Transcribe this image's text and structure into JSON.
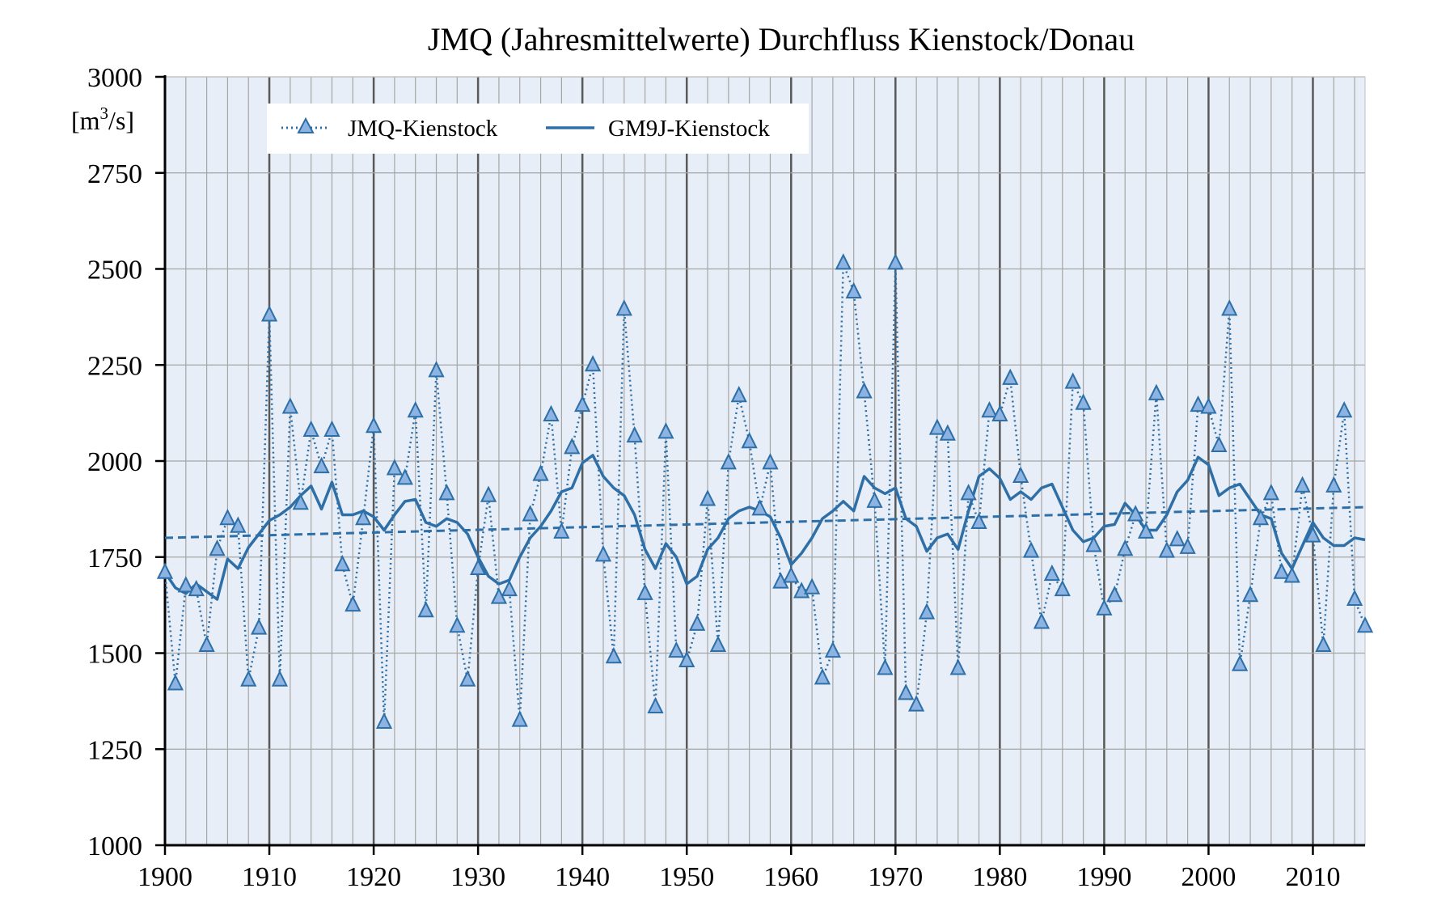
{
  "chart_data": {
    "type": "line",
    "title": "JMQ (Jahresmittelwerte)  Durchfluss Kienstock/Donau",
    "ylabel_prefix": "[m",
    "ylabel_sup": "3",
    "ylabel_suffix": "/s]",
    "xlim": [
      1900,
      2015
    ],
    "ylim": [
      1000,
      3000
    ],
    "x_ticks": [
      1900,
      1910,
      1920,
      1930,
      1940,
      1950,
      1960,
      1970,
      1980,
      1990,
      2000,
      2010
    ],
    "y_ticks": [
      1000,
      1250,
      1500,
      1750,
      2000,
      2250,
      2500,
      2750,
      3000
    ],
    "grid": "vertical lines every 2 years, major every 10 years; horizontal lines every 250",
    "legend_position": "top-left",
    "colors": {
      "series": "#2e6fa7",
      "marker_fill": "#8db3e2",
      "plot_background": "#e7eef7",
      "major_grid": "#595959",
      "minor_grid": "#a6a6a6"
    },
    "series": [
      {
        "name": "JMQ-Kienstock",
        "style": "dotted line with triangle markers",
        "x": [
          1900,
          1901,
          1902,
          1903,
          1904,
          1905,
          1906,
          1907,
          1908,
          1909,
          1910,
          1911,
          1912,
          1913,
          1914,
          1915,
          1916,
          1917,
          1918,
          1919,
          1920,
          1921,
          1922,
          1923,
          1924,
          1925,
          1926,
          1927,
          1928,
          1929,
          1930,
          1931,
          1932,
          1933,
          1934,
          1935,
          1936,
          1937,
          1938,
          1939,
          1940,
          1941,
          1942,
          1943,
          1944,
          1945,
          1946,
          1947,
          1948,
          1949,
          1950,
          1951,
          1952,
          1953,
          1954,
          1955,
          1956,
          1957,
          1958,
          1959,
          1960,
          1961,
          1962,
          1963,
          1964,
          1965,
          1966,
          1967,
          1968,
          1969,
          1970,
          1971,
          1972,
          1973,
          1974,
          1975,
          1976,
          1977,
          1978,
          1979,
          1980,
          1981,
          1982,
          1983,
          1984,
          1985,
          1986,
          1987,
          1988,
          1989,
          1990,
          1991,
          1992,
          1993,
          1994,
          1995,
          1996,
          1997,
          1998,
          1999,
          2000,
          2001,
          2002,
          2003,
          2004,
          2005,
          2006,
          2007,
          2008,
          2009,
          2010,
          2011,
          2012,
          2013,
          2014,
          2015
        ],
        "y": [
          1710,
          1420,
          1675,
          1665,
          1520,
          1770,
          1850,
          1830,
          1430,
          1565,
          2380,
          1430,
          2140,
          1890,
          2080,
          1985,
          2080,
          1730,
          1625,
          1850,
          2090,
          1320,
          1980,
          1955,
          2130,
          1610,
          2235,
          1915,
          1570,
          1430,
          1720,
          1910,
          1645,
          1665,
          1325,
          1860,
          1965,
          2120,
          1815,
          2035,
          2145,
          2250,
          1755,
          1490,
          2395,
          2065,
          1655,
          1360,
          2075,
          1505,
          1480,
          1575,
          1900,
          1520,
          1995,
          2170,
          2050,
          1875,
          1995,
          1685,
          1700,
          1660,
          1670,
          1435,
          1505,
          2515,
          2440,
          2180,
          1895,
          1460,
          2515,
          1395,
          1365,
          1605,
          2085,
          2070,
          1460,
          1915,
          1840,
          2130,
          2120,
          2215,
          1960,
          1765,
          1580,
          1705,
          1665,
          2205,
          2150,
          1780,
          1615,
          1650,
          1770,
          1860,
          1815,
          2175,
          1765,
          1795,
          1775,
          2145,
          2140,
          2040,
          2395,
          1470,
          1650,
          1850,
          1915,
          1710,
          1700,
          1935,
          1805,
          1520,
          1935,
          2130,
          1640,
          1570
        ]
      },
      {
        "name": "GM9J-Kienstock",
        "style": "solid line (gleitendes Mittel)",
        "x": [
          1900,
          1901,
          1902,
          1903,
          1904,
          1905,
          1906,
          1907,
          1908,
          1909,
          1910,
          1911,
          1912,
          1913,
          1914,
          1915,
          1916,
          1917,
          1918,
          1919,
          1920,
          1921,
          1922,
          1923,
          1924,
          1925,
          1926,
          1927,
          1928,
          1929,
          1930,
          1931,
          1932,
          1933,
          1934,
          1935,
          1936,
          1937,
          1938,
          1939,
          1940,
          1941,
          1942,
          1943,
          1944,
          1945,
          1946,
          1947,
          1948,
          1949,
          1950,
          1951,
          1952,
          1953,
          1954,
          1955,
          1956,
          1957,
          1958,
          1959,
          1960,
          1961,
          1962,
          1963,
          1964,
          1965,
          1966,
          1967,
          1968,
          1969,
          1970,
          1971,
          1972,
          1973,
          1974,
          1975,
          1976,
          1977,
          1978,
          1979,
          1980,
          1981,
          1982,
          1983,
          1984,
          1985,
          1986,
          1987,
          1988,
          1989,
          1990,
          1991,
          1992,
          1993,
          1994,
          1995,
          1996,
          1997,
          1998,
          1999,
          2000,
          2001,
          2002,
          2003,
          2004,
          2005,
          2006,
          2007,
          2008,
          2009,
          2010,
          2011,
          2012,
          2013,
          2014,
          2015
        ],
        "y": [
          1710,
          1670,
          1655,
          1680,
          1660,
          1640,
          1745,
          1720,
          1775,
          1810,
          1845,
          1860,
          1880,
          1910,
          1935,
          1875,
          1945,
          1860,
          1860,
          1870,
          1855,
          1820,
          1860,
          1895,
          1900,
          1840,
          1830,
          1850,
          1840,
          1810,
          1750,
          1700,
          1680,
          1690,
          1750,
          1800,
          1830,
          1870,
          1920,
          1930,
          1995,
          2015,
          1960,
          1930,
          1910,
          1860,
          1770,
          1720,
          1785,
          1750,
          1680,
          1700,
          1770,
          1800,
          1850,
          1870,
          1880,
          1870,
          1855,
          1800,
          1730,
          1760,
          1800,
          1850,
          1870,
          1895,
          1870,
          1960,
          1930,
          1915,
          1930,
          1850,
          1830,
          1765,
          1800,
          1810,
          1770,
          1870,
          1960,
          1980,
          1955,
          1900,
          1920,
          1900,
          1930,
          1940,
          1880,
          1820,
          1790,
          1800,
          1830,
          1835,
          1890,
          1860,
          1820,
          1820,
          1860,
          1920,
          1950,
          2010,
          1990,
          1910,
          1930,
          1940,
          1900,
          1860,
          1850,
          1760,
          1720,
          1780,
          1840,
          1800,
          1780,
          1780,
          1800,
          1795
        ]
      },
      {
        "name": "",
        "style": "dashed linear trend",
        "x": [
          1900,
          2015
        ],
        "y": [
          1800,
          1880
        ]
      }
    ]
  }
}
